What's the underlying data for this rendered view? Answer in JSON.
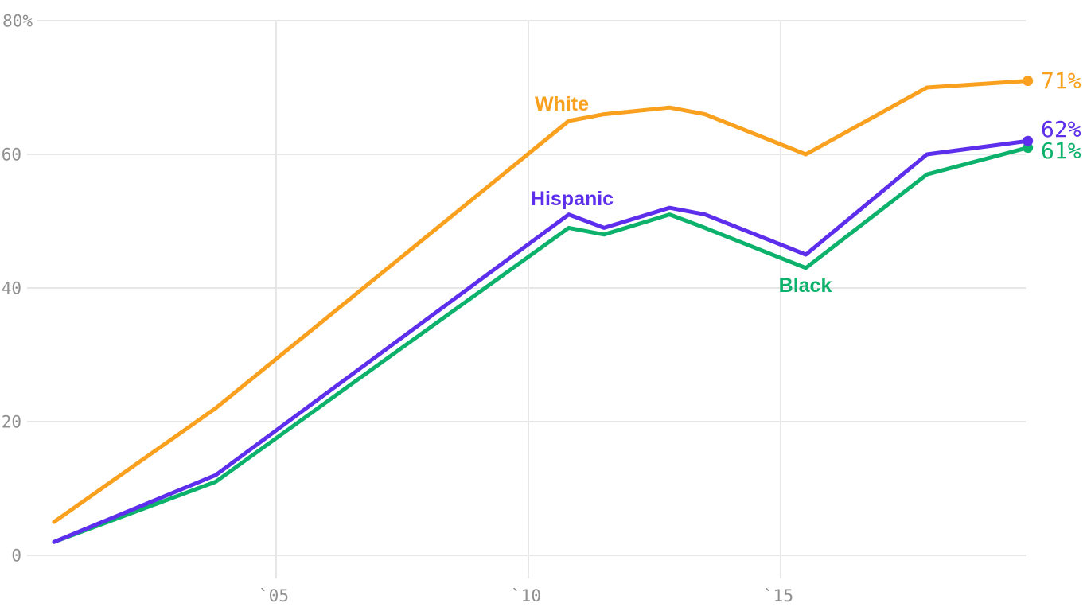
{
  "page": {
    "background": "#ffffff"
  },
  "chart_data": {
    "type": "line",
    "title": "",
    "xlabel": "",
    "ylabel": "",
    "ylim": [
      0,
      80
    ],
    "xlim": [
      2000.2,
      2020.4
    ],
    "grid": true,
    "grid_color": "#e7e7e7",
    "tick_color": "#8f8f8f",
    "x": [
      2000.6,
      2003.8,
      2010.8,
      2011.5,
      2012.8,
      2013.5,
      2015.5,
      2017.9,
      2019.9
    ],
    "series": [
      {
        "name": "White",
        "color": "#f9a01e",
        "values": [
          5,
          22,
          65,
          66,
          67,
          66,
          60,
          70,
          71
        ]
      },
      {
        "name": "Hispanic",
        "color": "#5d2eec",
        "values": [
          2,
          12,
          51,
          49,
          52,
          51,
          45,
          60,
          62
        ]
      },
      {
        "name": "Black",
        "color": "#0cb26b",
        "values": [
          2,
          11,
          49,
          48,
          51,
          49,
          43,
          57,
          61
        ]
      }
    ],
    "y_ticks": [
      {
        "value": 80,
        "label": "80%"
      },
      {
        "value": 60,
        "label": "60"
      },
      {
        "value": 40,
        "label": "40"
      },
      {
        "value": 20,
        "label": "20"
      },
      {
        "value": 0,
        "label": "0"
      }
    ],
    "x_ticks": [
      {
        "value": 2005,
        "label": "`05"
      },
      {
        "value": 2010,
        "label": "`10"
      },
      {
        "value": 2015,
        "label": "`15"
      }
    ],
    "series_labels": [
      {
        "series": "White",
        "text": "White",
        "x": 706,
        "y": 139
      },
      {
        "series": "Hispanic",
        "text": "Hispanic",
        "x": 719,
        "y": 258
      },
      {
        "series": "Black",
        "text": "Black",
        "x": 1012,
        "y": 367
      }
    ],
    "end_labels": [
      {
        "series": "White",
        "text": "71%",
        "y": 111
      },
      {
        "series": "Hispanic",
        "text": "62%",
        "y": 172
      },
      {
        "series": "Black",
        "text": "61%",
        "y": 199
      }
    ],
    "end_label_x": 1308,
    "legend_position": "inline-labels"
  }
}
